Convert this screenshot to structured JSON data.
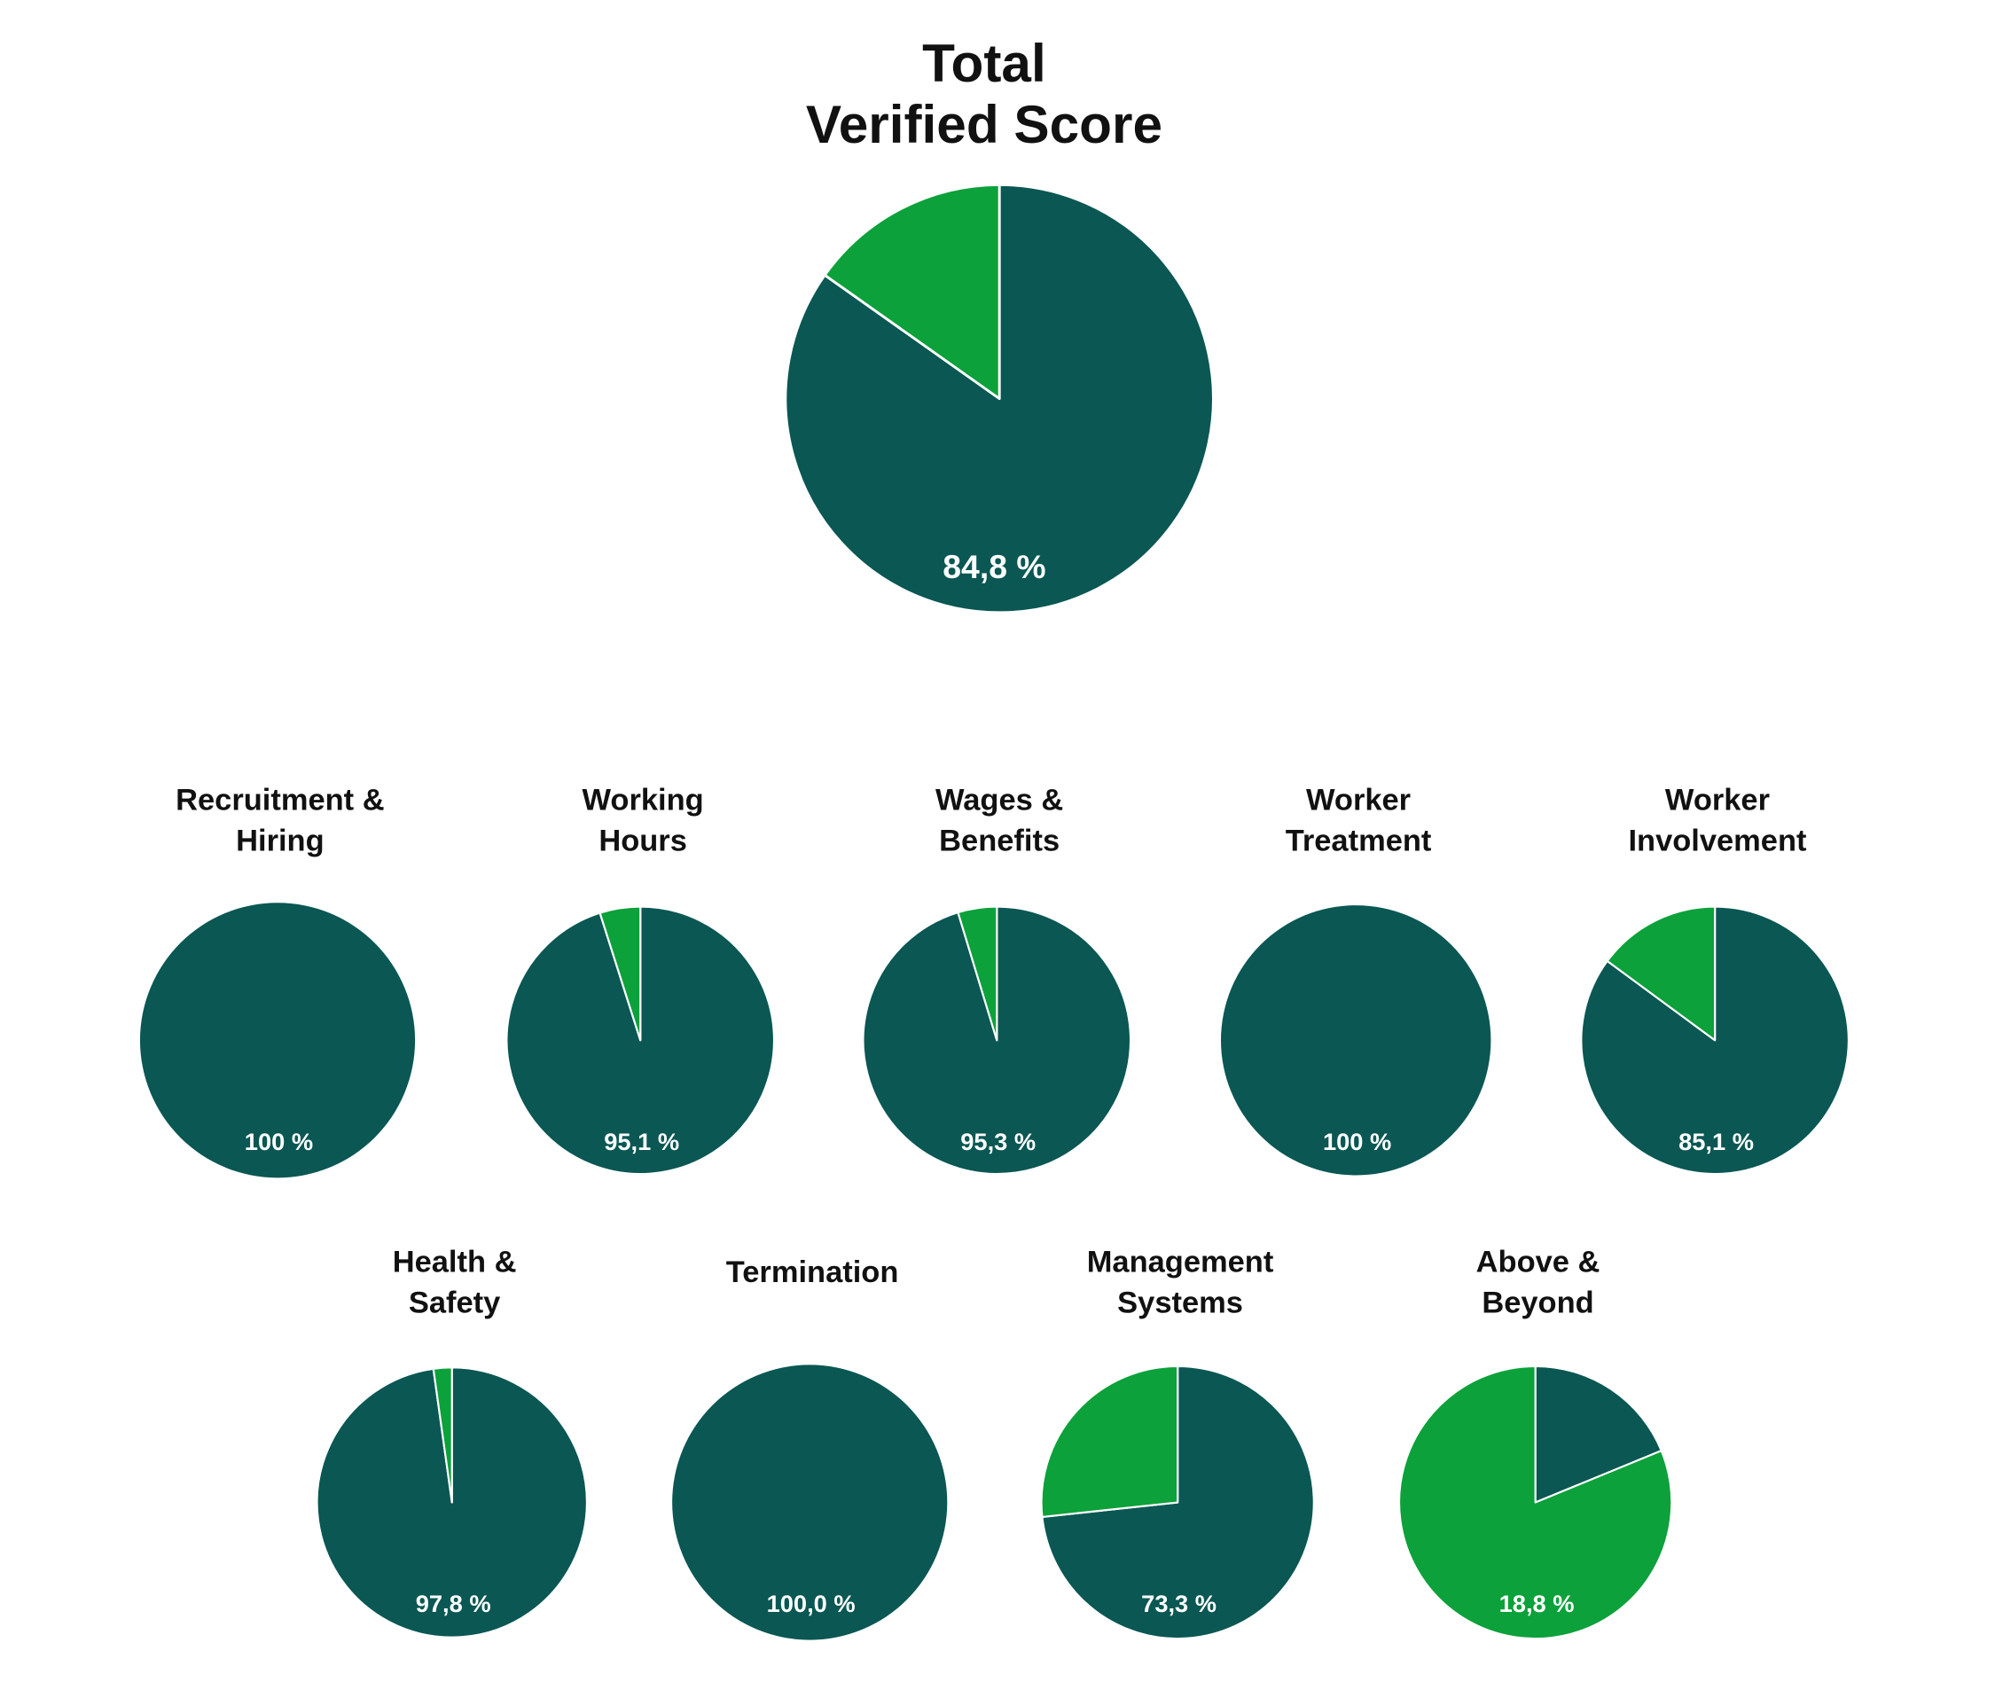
{
  "chart_data": {
    "type": "pie",
    "title": [
      "Total",
      "Verified Score"
    ],
    "colors": {
      "score": "#0a5753",
      "remainder": "#0ca13a",
      "separator": "#ffffff"
    },
    "main": {
      "title": [
        "Total",
        "Verified Score"
      ],
      "value": 84.8,
      "label": "84,8 %"
    },
    "categories": [
      {
        "title": [
          "Recruitment &",
          "Hiring"
        ],
        "value": 100,
        "label": "100 %"
      },
      {
        "title": [
          "Working",
          "Hours"
        ],
        "value": 95.1,
        "label": "95,1 %"
      },
      {
        "title": [
          "Wages &",
          "Benefits"
        ],
        "value": 95.3,
        "label": "95,3 %"
      },
      {
        "title": [
          "Worker",
          "Treatment"
        ],
        "value": 100,
        "label": "100 %"
      },
      {
        "title": [
          "Worker",
          "Involvement"
        ],
        "value": 85.1,
        "label": "85,1 %"
      },
      {
        "title": [
          "Health &",
          "Safety"
        ],
        "value": 97.8,
        "label": "97,8 %"
      },
      {
        "title": [
          "Termination"
        ],
        "value": 100.0,
        "label": "100,0 %"
      },
      {
        "title": [
          "Management",
          "Systems"
        ],
        "value": 73.3,
        "label": "73,3 %"
      },
      {
        "title": [
          "Above &",
          "Beyond"
        ],
        "value": 18.8,
        "label": "18,8 %"
      }
    ]
  }
}
